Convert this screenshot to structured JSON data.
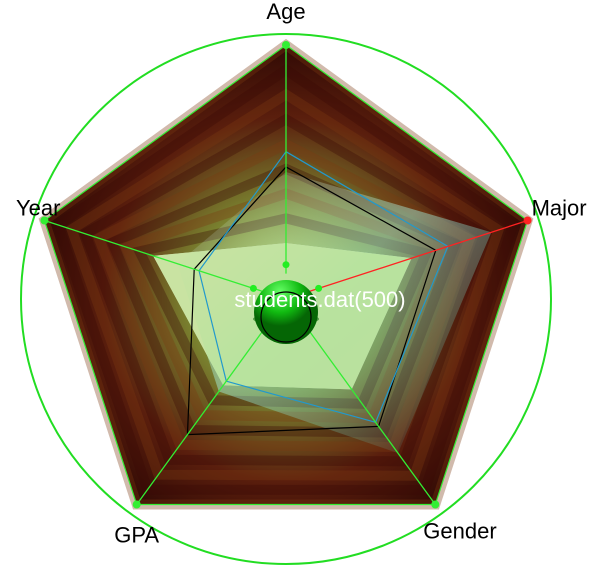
{
  "chart_data": {
    "type": "radar",
    "axes": [
      "Age",
      "Major",
      "Gender",
      "GPA",
      "Year"
    ],
    "center_label": "students.dat(500)",
    "outer_band_max": [
      1.0,
      1.0,
      1.0,
      1.0,
      1.0
    ],
    "inner_band_min": [
      0.22,
      0.52,
      0.44,
      0.42,
      0.55
    ],
    "black_line_values": [
      0.52,
      0.62,
      0.62,
      0.66,
      0.38
    ],
    "blue_line_values": [
      0.58,
      0.67,
      0.6,
      0.4,
      0.36
    ],
    "highlighted_axis": "Major",
    "colors": {
      "guide_circle": "#22dd22",
      "axis_line": "#33ee33",
      "highlight_axis": "#ff2222",
      "center_sphere": "#11bb11",
      "dark_band": "#5a0f08",
      "light_band": "#9acc55",
      "cyan_band": "#88ffee"
    }
  }
}
